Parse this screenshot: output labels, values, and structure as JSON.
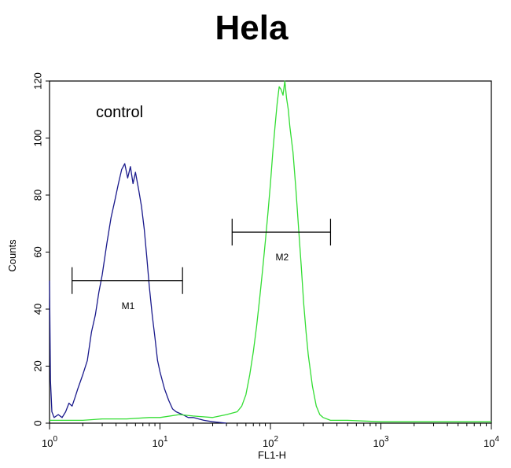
{
  "chart_data": {
    "type": "line",
    "title": "Hela",
    "xlabel": "FL1-H",
    "ylabel": "Counts",
    "x_scale": "log",
    "xlim": [
      1,
      10000
    ],
    "ylim": [
      0,
      120
    ],
    "x_ticks": [
      {
        "value": 1,
        "base": "10",
        "exp": "0"
      },
      {
        "value": 10,
        "base": "10",
        "exp": "1"
      },
      {
        "value": 100,
        "base": "10",
        "exp": "2"
      },
      {
        "value": 1000,
        "base": "10",
        "exp": "3"
      },
      {
        "value": 10000,
        "base": "10",
        "exp": "4"
      }
    ],
    "y_ticks": [
      "0",
      "20",
      "40",
      "60",
      "80",
      "100",
      "120"
    ],
    "grid": false,
    "annotation": "control",
    "gates": [
      {
        "label": "M1",
        "x_start": 1.6,
        "x_end": 16,
        "y": 50
      },
      {
        "label": "M2",
        "x_start": 45,
        "x_end": 350,
        "y": 67
      }
    ],
    "series": [
      {
        "color": "#1a1a8c",
        "points": [
          [
            1.0,
            50
          ],
          [
            1.02,
            15
          ],
          [
            1.05,
            4
          ],
          [
            1.1,
            2
          ],
          [
            1.2,
            3
          ],
          [
            1.3,
            2
          ],
          [
            1.4,
            4
          ],
          [
            1.5,
            7
          ],
          [
            1.6,
            6
          ],
          [
            1.7,
            9
          ],
          [
            1.8,
            12
          ],
          [
            2.0,
            17
          ],
          [
            2.2,
            22
          ],
          [
            2.4,
            32
          ],
          [
            2.6,
            38
          ],
          [
            2.8,
            46
          ],
          [
            3.0,
            52
          ],
          [
            3.3,
            63
          ],
          [
            3.6,
            72
          ],
          [
            3.9,
            78
          ],
          [
            4.2,
            84
          ],
          [
            4.5,
            89
          ],
          [
            4.8,
            91
          ],
          [
            5.1,
            86
          ],
          [
            5.4,
            90
          ],
          [
            5.7,
            84
          ],
          [
            6.0,
            88
          ],
          [
            6.4,
            82
          ],
          [
            6.8,
            76
          ],
          [
            7.2,
            68
          ],
          [
            7.6,
            58
          ],
          [
            8.0,
            48
          ],
          [
            8.5,
            38
          ],
          [
            9.0,
            30
          ],
          [
            9.5,
            22
          ],
          [
            10,
            18
          ],
          [
            11,
            12
          ],
          [
            12,
            8
          ],
          [
            13,
            5
          ],
          [
            14,
            4
          ],
          [
            16,
            3
          ],
          [
            18,
            2
          ],
          [
            20,
            2
          ],
          [
            25,
            1
          ],
          [
            30,
            0.5
          ],
          [
            40,
            0
          ]
        ]
      },
      {
        "color": "#33dd33",
        "points": [
          [
            1.0,
            1
          ],
          [
            2,
            1
          ],
          [
            3,
            1.5
          ],
          [
            5,
            1.5
          ],
          [
            8,
            2
          ],
          [
            10,
            2
          ],
          [
            15,
            3
          ],
          [
            20,
            2.5
          ],
          [
            30,
            2
          ],
          [
            40,
            3
          ],
          [
            50,
            4
          ],
          [
            55,
            6
          ],
          [
            60,
            10
          ],
          [
            65,
            17
          ],
          [
            70,
            25
          ],
          [
            75,
            34
          ],
          [
            80,
            44
          ],
          [
            85,
            54
          ],
          [
            90,
            64
          ],
          [
            95,
            74
          ],
          [
            100,
            84
          ],
          [
            105,
            95
          ],
          [
            110,
            104
          ],
          [
            115,
            112
          ],
          [
            120,
            118
          ],
          [
            125,
            117
          ],
          [
            130,
            115
          ],
          [
            135,
            120
          ],
          [
            140,
            114
          ],
          [
            145,
            110
          ],
          [
            150,
            104
          ],
          [
            160,
            95
          ],
          [
            170,
            82
          ],
          [
            180,
            68
          ],
          [
            190,
            55
          ],
          [
            200,
            42
          ],
          [
            210,
            32
          ],
          [
            220,
            24
          ],
          [
            240,
            13
          ],
          [
            260,
            6
          ],
          [
            280,
            3
          ],
          [
            300,
            2
          ],
          [
            350,
            1
          ],
          [
            500,
            1
          ],
          [
            1000,
            0.5
          ],
          [
            10000,
            0.5
          ]
        ]
      }
    ]
  }
}
